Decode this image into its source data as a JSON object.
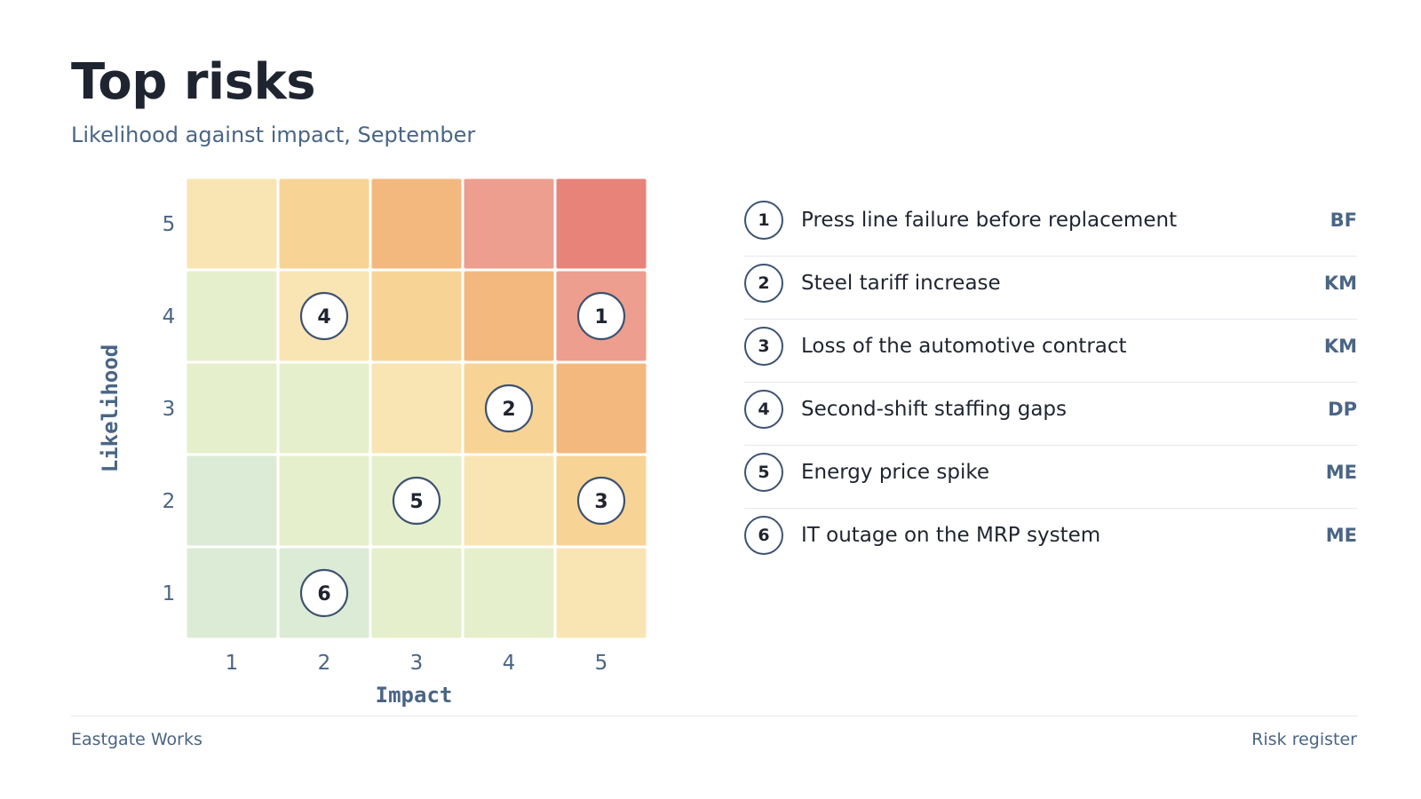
{
  "header": {
    "title": "Top risks",
    "subtitle": "Likelihood against impact, September"
  },
  "chart_data": {
    "type": "heatmap",
    "xlabel": "Impact",
    "ylabel": "Likelihood",
    "x_ticks": [
      "1",
      "2",
      "3",
      "4",
      "5"
    ],
    "y_ticks": [
      "1",
      "2",
      "3",
      "4",
      "5"
    ],
    "xlim": [
      1,
      5
    ],
    "ylim": [
      1,
      5
    ],
    "cell_colors": [
      [
        "#dcebd6",
        "#dcebd6",
        "#e6efcb",
        "#e6efcb",
        "#f9e5b4"
      ],
      [
        "#dcebd6",
        "#e6efcb",
        "#e6efcb",
        "#f9e5b4",
        "#f7d495"
      ],
      [
        "#e6efcb",
        "#e6efcb",
        "#f9e5b4",
        "#f7d495",
        "#f3b87e"
      ],
      [
        "#e6efcb",
        "#f9e5b4",
        "#f7d495",
        "#f3b87e",
        "#ed9e8e"
      ],
      [
        "#f9e5b4",
        "#f7d495",
        "#f3b87e",
        "#ed9e8e",
        "#e8837a"
      ]
    ],
    "points": [
      {
        "id": "1",
        "impact": 5,
        "likelihood": 4
      },
      {
        "id": "2",
        "impact": 4,
        "likelihood": 3
      },
      {
        "id": "3",
        "impact": 5,
        "likelihood": 2
      },
      {
        "id": "4",
        "impact": 2,
        "likelihood": 4
      },
      {
        "id": "5",
        "impact": 3,
        "likelihood": 2
      },
      {
        "id": "6",
        "impact": 2,
        "likelihood": 1
      }
    ]
  },
  "legend": {
    "items": [
      {
        "id": "1",
        "label": "Press line failure before replacement",
        "owner": "BF"
      },
      {
        "id": "2",
        "label": "Steel tariff increase",
        "owner": "KM"
      },
      {
        "id": "3",
        "label": "Loss of the automotive contract",
        "owner": "KM"
      },
      {
        "id": "4",
        "label": "Second-shift staffing gaps",
        "owner": "DP"
      },
      {
        "id": "5",
        "label": "Energy price spike",
        "owner": "ME"
      },
      {
        "id": "6",
        "label": "IT outage on the MRP system",
        "owner": "ME"
      }
    ]
  },
  "footer": {
    "left": "Eastgate Works",
    "right": "Risk register"
  },
  "colors": {
    "marker_stroke": "#3d5270",
    "axis_text": "#4a6585",
    "title_text": "#1f2530"
  }
}
